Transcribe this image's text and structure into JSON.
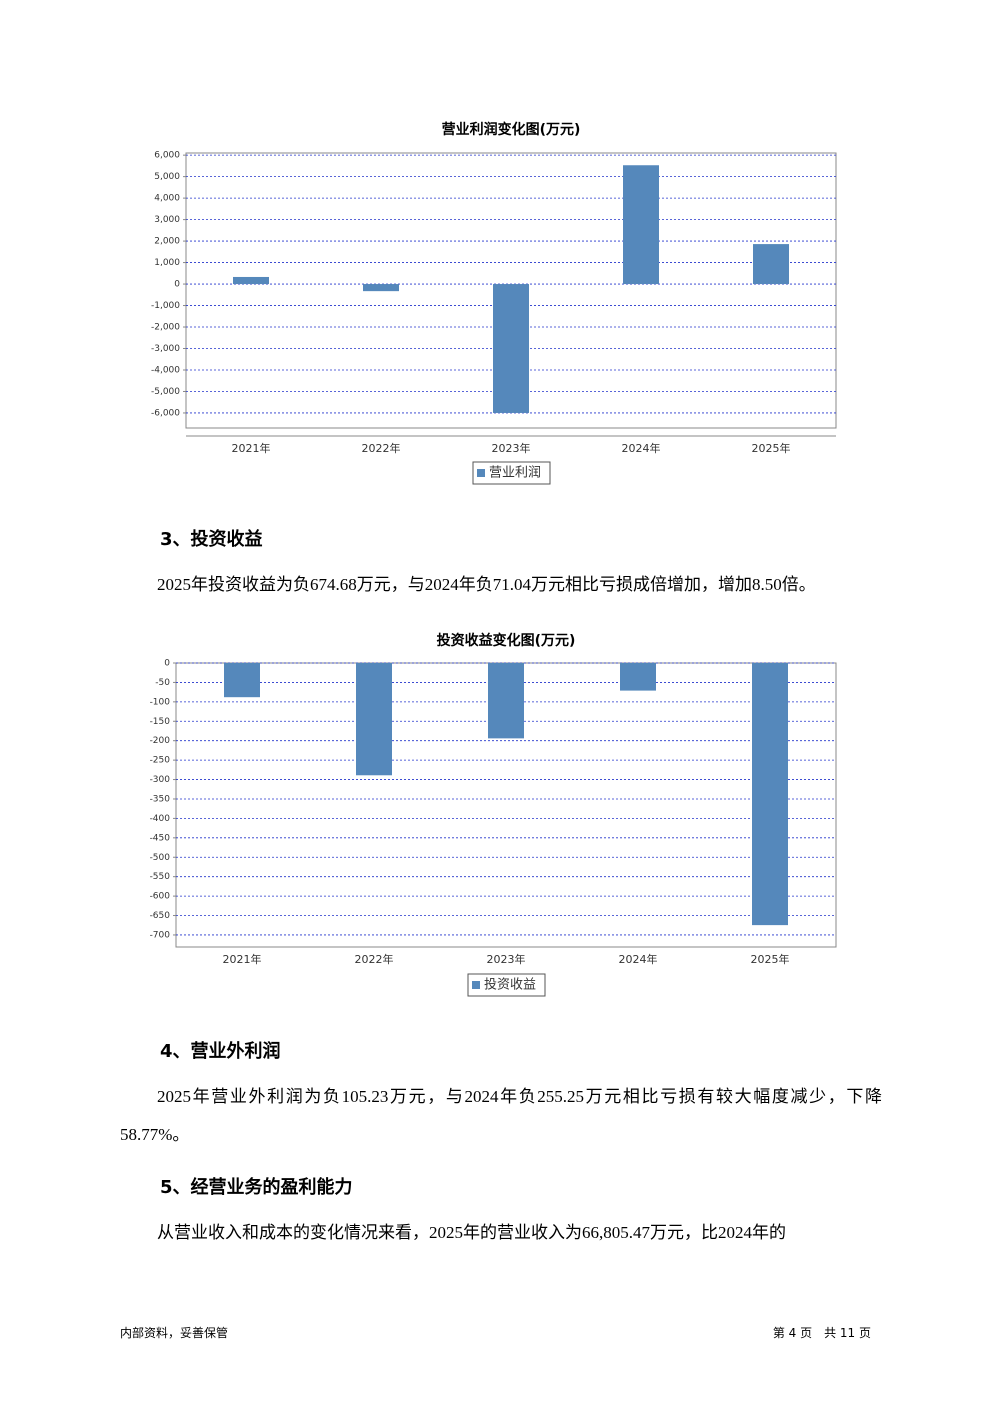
{
  "chart_data": [
    {
      "type": "bar",
      "title": "营业利润变化图(万元)",
      "categories": [
        "2021年",
        "2022年",
        "2023年",
        "2024年",
        "2025年"
      ],
      "series": [
        {
          "name": "营业利润",
          "color": "#5588bb",
          "values": [
            330,
            -330,
            -6000,
            5530,
            1860
          ]
        }
      ],
      "ylim": [
        -6700,
        6100
      ],
      "yticks": [
        {
          "value": 6000,
          "label": "6,000"
        },
        {
          "value": 5000,
          "label": "5,000"
        },
        {
          "value": 4000,
          "label": "4,000"
        },
        {
          "value": 3000,
          "label": "3,000"
        },
        {
          "value": 2000,
          "label": "2,000"
        },
        {
          "value": 1000,
          "label": "1,000"
        },
        0,
        {
          "value": -1000,
          "label": "-1,000"
        },
        {
          "value": -2000,
          "label": "-2,000"
        },
        {
          "value": -3000,
          "label": "-3,000"
        },
        {
          "value": -4000,
          "label": "-4,000"
        },
        {
          "value": -5000,
          "label": "-5,000"
        },
        {
          "value": -6000,
          "label": "-6,000"
        }
      ],
      "grid": true
    },
    {
      "type": "bar",
      "title": "投资收益变化图(万元)",
      "categories": [
        "2021年",
        "2022年",
        "2023年",
        "2024年",
        "2025年"
      ],
      "series": [
        {
          "name": "投资收益",
          "color": "#5588bb",
          "values": [
            -88,
            -289,
            -194,
            -71.04,
            -674.68
          ]
        }
      ],
      "ylim": [
        -731,
        0
      ],
      "yticks": [
        0,
        -50,
        -100,
        -150,
        -200,
        -250,
        -300,
        -350,
        -400,
        -450,
        -500,
        -550,
        -600,
        -650,
        -700
      ],
      "grid": true
    }
  ],
  "sections": [
    {
      "heading": "3、投资收益",
      "paragraph": "2025年投资收益为负674.68万元，与2024年负71.04万元相比亏损成倍增加，增加8.50倍。"
    },
    {
      "heading": "4、营业外利润",
      "paragraph": "2025年营业外利润为负105.23万元，与2024年负255.25万元相比亏损有较大幅度减少，下降58.77%。"
    },
    {
      "heading": "5、经营业务的盈利能力",
      "paragraph": "从营业收入和成本的变化情况来看，2025年的营业收入为66,805.47万元，比2024年的"
    }
  ],
  "footer": {
    "left": "内部资料，妥善保管",
    "right": "第 4 页　共 11 页"
  }
}
